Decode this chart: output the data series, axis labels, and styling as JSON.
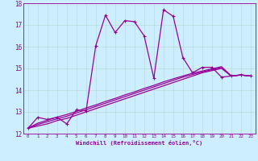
{
  "xlabel": "Windchill (Refroidissement éolien,°C)",
  "bg_color": "#cceeff",
  "grid_color": "#aaddcc",
  "line_color": "#990099",
  "xlim": [
    -0.5,
    23.5
  ],
  "ylim": [
    12,
    18
  ],
  "xticks": [
    0,
    1,
    2,
    3,
    4,
    5,
    6,
    7,
    8,
    9,
    10,
    11,
    12,
    13,
    14,
    15,
    16,
    17,
    18,
    19,
    20,
    21,
    22,
    23
  ],
  "yticks": [
    12,
    13,
    14,
    15,
    16,
    17,
    18
  ],
  "series1_x": [
    0,
    1,
    2,
    3,
    4,
    5,
    6,
    7,
    8,
    9,
    10,
    11,
    12,
    13,
    14,
    15,
    16,
    17,
    18,
    19,
    20,
    21,
    22,
    23
  ],
  "series1_y": [
    12.25,
    12.75,
    12.65,
    12.75,
    12.45,
    13.1,
    13.05,
    16.05,
    17.45,
    16.65,
    17.2,
    17.15,
    16.5,
    14.55,
    17.7,
    17.4,
    15.5,
    14.8,
    15.05,
    15.05,
    14.6,
    14.65,
    14.7,
    14.65
  ],
  "series2_x": [
    0,
    1,
    2,
    3,
    4,
    5,
    6,
    7,
    8,
    9,
    10,
    11,
    12,
    13,
    14,
    15,
    16,
    17,
    18,
    19,
    20,
    21,
    22,
    23
  ],
  "series2_y": [
    12.25,
    12.35,
    12.45,
    12.6,
    12.7,
    12.85,
    13.0,
    13.15,
    13.3,
    13.45,
    13.6,
    13.75,
    13.9,
    14.05,
    14.2,
    14.35,
    14.5,
    14.65,
    14.8,
    14.9,
    15.0,
    14.65,
    14.7,
    14.65
  ],
  "series3_x": [
    0,
    1,
    2,
    3,
    4,
    5,
    6,
    7,
    8,
    9,
    10,
    11,
    12,
    13,
    14,
    15,
    16,
    17,
    18,
    19,
    20,
    21,
    22,
    23
  ],
  "series3_y": [
    12.25,
    12.42,
    12.55,
    12.68,
    12.8,
    12.95,
    13.1,
    13.25,
    13.4,
    13.55,
    13.7,
    13.85,
    14.0,
    14.15,
    14.3,
    14.45,
    14.6,
    14.72,
    14.84,
    14.94,
    15.05,
    14.65,
    14.7,
    14.65
  ],
  "series4_x": [
    0,
    1,
    2,
    3,
    4,
    5,
    6,
    7,
    8,
    9,
    10,
    11,
    12,
    13,
    14,
    15,
    16,
    17,
    18,
    19,
    20,
    21,
    22,
    23
  ],
  "series4_y": [
    12.25,
    12.48,
    12.62,
    12.76,
    12.88,
    13.02,
    13.18,
    13.32,
    13.48,
    13.62,
    13.78,
    13.92,
    14.08,
    14.22,
    14.38,
    14.52,
    14.65,
    14.78,
    14.88,
    14.98,
    15.08,
    14.65,
    14.7,
    14.65
  ]
}
